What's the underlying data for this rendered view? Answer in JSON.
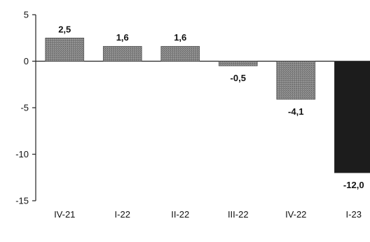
{
  "chart_data": {
    "type": "bar",
    "categories": [
      "IV-21",
      "I-22",
      "II-22",
      "III-22",
      "IV-22",
      "I-23"
    ],
    "values": [
      2.5,
      1.6,
      1.6,
      -0.5,
      -4.1,
      -12.0
    ],
    "data_labels": [
      "2,5",
      "1,6",
      "1,6",
      "-0,5",
      "-4,1",
      "-12,0"
    ],
    "y_ticks": [
      5,
      0,
      -5,
      -10,
      -15
    ],
    "y_tick_labels": [
      "5",
      "0",
      "-5",
      "-10",
      "-15"
    ],
    "ylim": [
      -15,
      5
    ],
    "grid": false,
    "bar_colors": [
      "#7a7a7a",
      "#7a7a7a",
      "#7a7a7a",
      "#7a7a7a",
      "#7a7a7a",
      "#1c1c1c"
    ]
  }
}
